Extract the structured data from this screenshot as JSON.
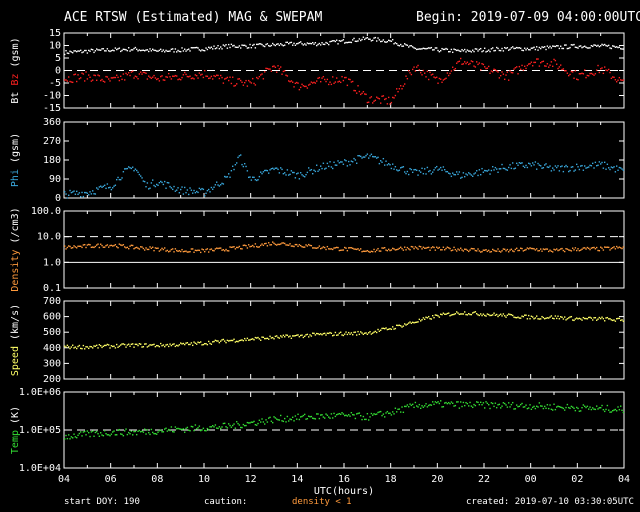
{
  "header": {
    "title": "ACE RTSW (Estimated) MAG & SWEPAM",
    "begin": "Begin: 2019-07-09 04:00:00UTC"
  },
  "footer": {
    "start_doy": "start DOY: 190",
    "caution": "caution:",
    "caution_note": "density < 1",
    "created": "created: 2019-07-10 03:30:05UTC"
  },
  "colors": {
    "bt": "#ffffff",
    "bz": "#ff2020",
    "phi": "#3aa8dc",
    "density": "#ff9a3c",
    "speed": "#ffff66",
    "temp": "#33dd33",
    "axis": "#ffffff",
    "dashed": "#ffffff"
  },
  "chart_data": [
    {
      "type": "scatter",
      "title": "ACE RTSW (Estimated) MAG & SWEPAM",
      "xlabel": "UTC(hours)",
      "ylabel": "Bt Bz (gsm)",
      "ylim": [
        -15,
        15
      ],
      "y_ticks": [
        "15",
        "10",
        "5",
        "0",
        "-5",
        "-10",
        "-15"
      ],
      "x_ticks": [
        "04",
        "06",
        "08",
        "10",
        "12",
        "14",
        "16",
        "18",
        "20",
        "22",
        "00",
        "02",
        "04"
      ],
      "xlim_hours": [
        0,
        24
      ],
      "grid": false,
      "reference_line": 0,
      "series": [
        {
          "name": "Bt",
          "x": [
            0,
            1,
            2,
            3,
            4,
            5,
            6,
            7,
            8,
            9,
            10,
            11,
            12,
            13,
            14,
            15,
            16,
            17,
            18,
            19,
            20,
            21,
            22,
            23,
            24
          ],
          "y": [
            7.5,
            8,
            8.5,
            8.8,
            8,
            8.5,
            9,
            10,
            10,
            10.5,
            11,
            11,
            12,
            13,
            12,
            9,
            8.5,
            8,
            8.5,
            9,
            9,
            9.5,
            10,
            10,
            9.5
          ]
        },
        {
          "name": "Bz",
          "x": [
            0,
            1,
            2,
            3,
            4,
            5,
            6,
            7,
            8,
            9,
            10,
            11,
            12,
            13,
            14,
            15,
            16,
            17,
            18,
            19,
            20,
            21,
            22,
            23,
            24
          ],
          "y": [
            -3,
            -2,
            -4,
            -1,
            -3,
            -2,
            -1,
            -4,
            -5,
            2,
            -6,
            -4,
            -3,
            -11,
            -12,
            2,
            -4,
            4,
            1,
            -2,
            4,
            3,
            -2,
            1,
            -5
          ]
        }
      ]
    },
    {
      "type": "scatter",
      "ylabel": "Phi (gsm)",
      "ylim": [
        0,
        360
      ],
      "y_ticks": [
        "360",
        "270",
        "180",
        "90",
        "0"
      ],
      "x_ticks": [
        "04",
        "06",
        "08",
        "10",
        "12",
        "14",
        "16",
        "18",
        "20",
        "22",
        "00",
        "02",
        "04"
      ],
      "series": [
        {
          "name": "Phi",
          "x": [
            0,
            1,
            2,
            2.5,
            3,
            3.5,
            4,
            5,
            6,
            7,
            7.5,
            8,
            9,
            10,
            11,
            12,
            13,
            14,
            15,
            16,
            17,
            18,
            19,
            20,
            21,
            22,
            23,
            24
          ],
          "y": [
            20,
            30,
            60,
            120,
            150,
            60,
            80,
            40,
            30,
            100,
            200,
            90,
            140,
            110,
            150,
            170,
            200,
            160,
            120,
            140,
            110,
            130,
            150,
            160,
            140,
            150,
            160,
            130
          ]
        }
      ]
    },
    {
      "type": "scatter",
      "ylabel": "Density (/cm3)",
      "yscale": "log",
      "ylim": [
        0.1,
        100
      ],
      "y_ticks": [
        "100.0",
        "10.0",
        "1.0",
        "0.1"
      ],
      "x_ticks": [
        "04",
        "06",
        "08",
        "10",
        "12",
        "14",
        "16",
        "18",
        "20",
        "22",
        "00",
        "02",
        "04"
      ],
      "reference_line": 1,
      "reference_line_dashed": 10,
      "series": [
        {
          "name": "Density",
          "x": [
            0,
            1,
            2,
            3,
            4,
            5,
            6,
            7,
            8,
            9,
            10,
            11,
            12,
            13,
            14,
            15,
            16,
            17,
            18,
            19,
            20,
            21,
            22,
            23,
            24
          ],
          "y": [
            4,
            4.5,
            5,
            4,
            3.5,
            3,
            3,
            3.5,
            4.5,
            6,
            5,
            4,
            3.5,
            3,
            3.5,
            4,
            3.5,
            3.5,
            3,
            3,
            3.5,
            3,
            3.5,
            3.5,
            4
          ]
        }
      ]
    },
    {
      "type": "scatter",
      "ylabel": "Speed (km/s)",
      "ylim": [
        200,
        700
      ],
      "y_ticks": [
        "700",
        "600",
        "500",
        "400",
        "300",
        "200"
      ],
      "x_ticks": [
        "04",
        "06",
        "08",
        "10",
        "12",
        "14",
        "16",
        "18",
        "20",
        "22",
        "00",
        "02",
        "04"
      ],
      "series": [
        {
          "name": "Speed",
          "x": [
            0,
            1,
            2,
            3,
            4,
            5,
            6,
            7,
            8,
            9,
            10,
            11,
            12,
            13,
            14,
            15,
            16,
            17,
            18,
            19,
            20,
            21,
            22,
            23,
            24
          ],
          "y": [
            410,
            410,
            415,
            420,
            420,
            425,
            435,
            450,
            460,
            470,
            480,
            490,
            495,
            500,
            530,
            570,
            610,
            630,
            620,
            610,
            600,
            600,
            590,
            590,
            580
          ]
        }
      ]
    },
    {
      "type": "scatter",
      "ylabel": "Temp (K)",
      "yscale": "log",
      "ylim": [
        10000,
        1000000
      ],
      "y_ticks": [
        "1.0E+06",
        "1.0E+05",
        "1.0E+04"
      ],
      "x_ticks": [
        "04",
        "06",
        "08",
        "10",
        "12",
        "14",
        "16",
        "18",
        "20",
        "22",
        "00",
        "02",
        "04"
      ],
      "xlabel": "UTC(hours)",
      "reference_line_dashed": 100000,
      "series": [
        {
          "name": "Temp",
          "x": [
            0,
            1,
            2,
            3,
            4,
            5,
            6,
            7,
            8,
            9,
            10,
            11,
            12,
            13,
            14,
            15,
            16,
            17,
            18,
            19,
            20,
            21,
            22,
            23,
            24
          ],
          "y": [
            70000,
            80000,
            90000,
            90000,
            100000,
            110000,
            120000,
            130000,
            160000,
            200000,
            220000,
            240000,
            250000,
            230000,
            300000,
            450000,
            500000,
            480000,
            470000,
            460000,
            450000,
            420000,
            400000,
            380000,
            360000
          ]
        }
      ]
    }
  ]
}
